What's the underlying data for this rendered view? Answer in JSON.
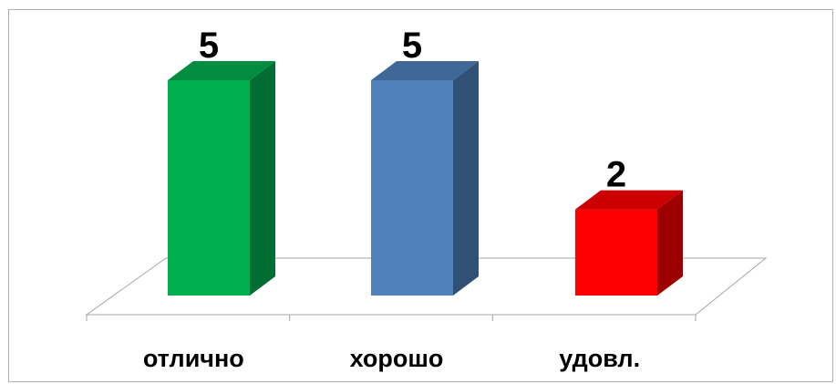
{
  "chart_data": {
    "type": "bar",
    "style": "3d-column",
    "categories": [
      "отлично",
      "хорошо",
      "удовл."
    ],
    "values": [
      5,
      5,
      2
    ],
    "colors": [
      "#00b050",
      "#4f81bd",
      "#ff0000"
    ],
    "title": "",
    "xlabel": "",
    "ylabel": "",
    "ylim": [
      0,
      5
    ],
    "grid": false,
    "legend": "none",
    "data_labels": true
  }
}
